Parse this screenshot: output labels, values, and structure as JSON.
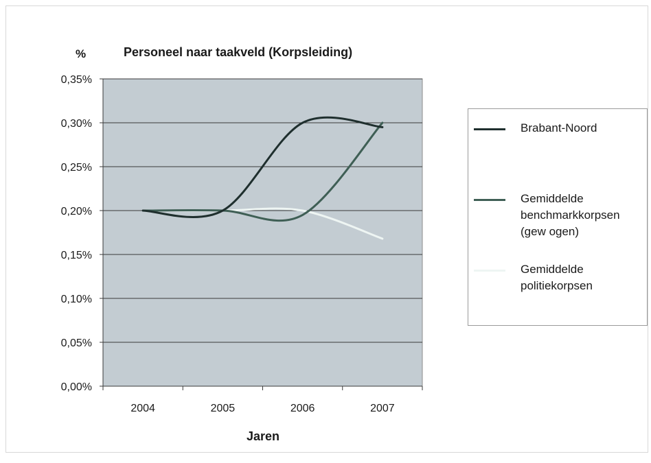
{
  "chart_data": {
    "type": "line",
    "title": "Personeel naar taakveld (Korpsleiding)",
    "unit_label": "%",
    "xlabel": "Jaren",
    "ylabel": "",
    "x": [
      "2004",
      "2005",
      "2006",
      "2007"
    ],
    "ylim": [
      0,
      0.35
    ],
    "y_ticks": [
      0,
      0.05,
      0.1,
      0.15,
      0.2,
      0.25,
      0.3,
      0.35
    ],
    "y_tick_labels": [
      "0,00%",
      "0,05%",
      "0,10%",
      "0,15%",
      "0,20%",
      "0,25%",
      "0,30%",
      "0,35%"
    ],
    "grid": true,
    "smooth": true,
    "plot_background": "#c3ccd2",
    "legend_position": "right",
    "series": [
      {
        "name": "Brabant-Noord",
        "color": "#1f2f2e",
        "values": [
          0.2,
          0.2,
          0.3,
          0.295
        ]
      },
      {
        "name": "Gemiddelde benchmarkkorpsen (gew ogen)",
        "color": "#3f5f55",
        "values": [
          0.2,
          0.2,
          0.195,
          0.3
        ]
      },
      {
        "name": "Gemiddelde politiekorpsen",
        "color": "#eef5f3",
        "values": [
          0.2,
          0.2,
          0.2,
          0.168
        ]
      }
    ]
  },
  "legend_labels": {
    "s0": "Brabant-Noord",
    "s1": "Gemiddelde benchmarkkorpsen (gew ogen)",
    "s2": "Gemiddelde politiekorpsen"
  }
}
